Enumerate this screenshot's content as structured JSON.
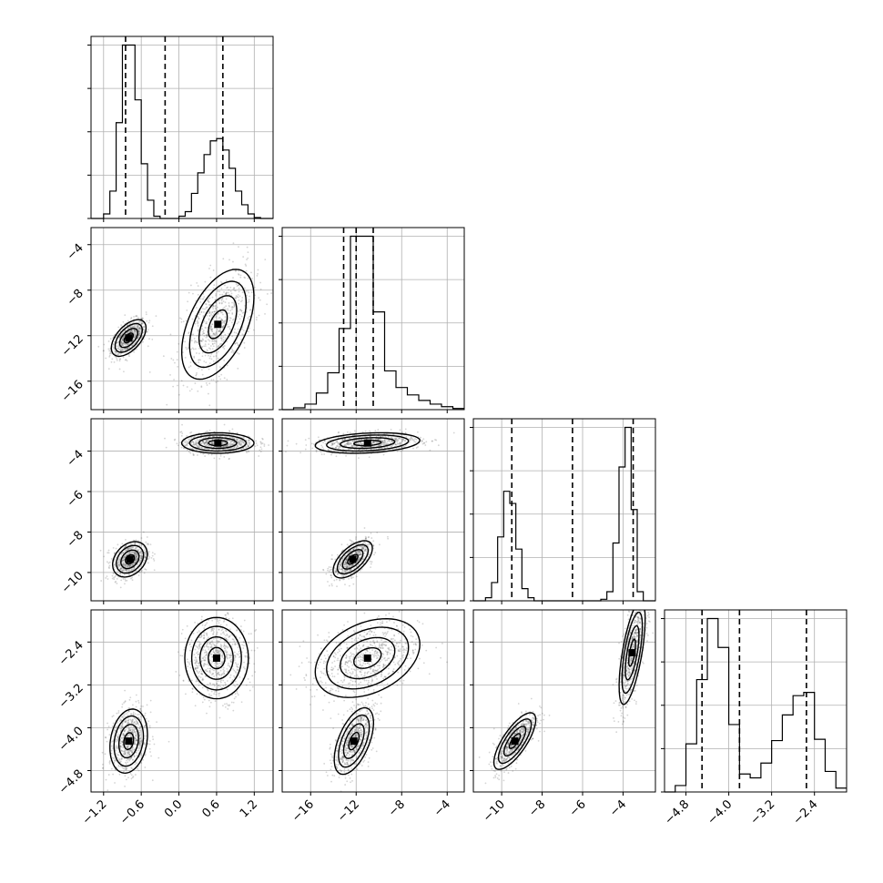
{
  "chart_data": {
    "type": "corner",
    "title": "",
    "grid": true,
    "parameters": [
      {
        "name": "",
        "range": [
          -1.4,
          1.5
        ],
        "ticks": [
          -1.2,
          -0.6,
          0.0,
          0.6,
          1.2
        ],
        "tick_labels": [
          "−1.2",
          "−0.6",
          "0.0",
          "0.6",
          "1.2"
        ],
        "quantiles": [
          -0.85,
          -0.22,
          0.7
        ]
      },
      {
        "name": "",
        "range": [
          -18.5,
          -2.5
        ],
        "ticks": [
          -16,
          -12,
          -8,
          -4
        ],
        "tick_labels": [
          "−16",
          "−12",
          "−8",
          "−4"
        ],
        "quantiles": [
          -13.1,
          -12.0,
          -10.5
        ]
      },
      {
        "name": "",
        "range": [
          -11.4,
          -2.4
        ],
        "ticks": [
          -10,
          -8,
          -6,
          -4
        ],
        "tick_labels": [
          "−10",
          "−8",
          "−6",
          "−4"
        ],
        "quantiles": [
          -9.5,
          -6.5,
          -3.5
        ]
      },
      {
        "name": "",
        "range": [
          -5.2,
          -1.8
        ],
        "ticks": [
          -4.8,
          -4.0,
          -3.2,
          -2.4
        ],
        "tick_labels": [
          "−4.8",
          "−4.0",
          "−3.2",
          "−2.4"
        ],
        "quantiles": [
          -4.5,
          -3.8,
          -2.55
        ]
      }
    ],
    "histograms": [
      {
        "param": 0,
        "bins": [
          -1.4,
          -1.3,
          -1.2,
          -1.1,
          -1.0,
          -0.9,
          -0.8,
          -0.7,
          -0.6,
          -0.5,
          -0.4,
          -0.3,
          -0.2,
          -0.1,
          0.0,
          0.1,
          0.2,
          0.3,
          0.4,
          0.5,
          0.6,
          0.7,
          0.8,
          0.9,
          1.0,
          1.1,
          1.2,
          1.3,
          1.4,
          1.5
        ],
        "counts": [
          0,
          0,
          10,
          60,
          210,
          380,
          380,
          260,
          120,
          40,
          5,
          0,
          0,
          0,
          5,
          15,
          55,
          100,
          140,
          170,
          175,
          150,
          110,
          60,
          30,
          10,
          2,
          0,
          0
        ]
      },
      {
        "param": 1,
        "bins": [
          -18.5,
          -17.5,
          -16.5,
          -15.5,
          -14.5,
          -13.5,
          -12.5,
          -11.5,
          -10.5,
          -9.5,
          -8.5,
          -7.5,
          -6.5,
          -5.5,
          -4.5,
          -3.5,
          -2.5
        ],
        "counts": [
          0,
          5,
          15,
          45,
          100,
          220,
          470,
          470,
          265,
          105,
          60,
          40,
          25,
          15,
          8,
          3
        ]
      },
      {
        "param": 2,
        "bins": [
          -11.4,
          -11.1,
          -10.8,
          -10.5,
          -10.2,
          -9.9,
          -9.6,
          -9.3,
          -9.0,
          -8.7,
          -8.4,
          -8.1,
          -7.8,
          -7.5,
          -7.2,
          -6.9,
          -6.6,
          -6.3,
          -6.0,
          -5.7,
          -5.4,
          -5.1,
          -4.8,
          -4.5,
          -4.2,
          -3.9,
          -3.6,
          -3.3,
          -3.0,
          -2.7,
          -2.4
        ],
        "counts": [
          0,
          0,
          10,
          60,
          210,
          360,
          320,
          170,
          40,
          10,
          0,
          0,
          0,
          0,
          0,
          0,
          0,
          0,
          0,
          0,
          0,
          5,
          30,
          190,
          440,
          570,
          300,
          30,
          0,
          0
        ]
      },
      {
        "param": 3,
        "bins": [
          -5.2,
          -5.0,
          -4.8,
          -4.6,
          -4.4,
          -4.2,
          -4.0,
          -3.8,
          -3.6,
          -3.4,
          -3.2,
          -3.0,
          -2.8,
          -2.6,
          -2.4,
          -2.2,
          -2.0,
          -1.8
        ],
        "counts": [
          0,
          10,
          75,
          175,
          270,
          225,
          105,
          28,
          22,
          45,
          80,
          120,
          150,
          155,
          82,
          32,
          6
        ]
      }
    ],
    "pairs": [
      {
        "x_param": 0,
        "y_param": 1,
        "modes": [
          {
            "cx": -0.8,
            "cy": -12.2,
            "sx": 0.12,
            "sy": 0.7,
            "rho": 0.55,
            "weight": 0.5
          },
          {
            "cx": 0.62,
            "cy": -11.0,
            "sx": 0.25,
            "sy": 2.1,
            "rho": 0.5,
            "weight": 0.5
          }
        ]
      },
      {
        "x_param": 0,
        "y_param": 2,
        "modes": [
          {
            "cx": -0.78,
            "cy": -9.35,
            "sx": 0.12,
            "sy": 0.38,
            "rho": 0.3,
            "weight": 0.5
          },
          {
            "cx": 0.62,
            "cy": -3.6,
            "sx": 0.25,
            "sy": 0.22,
            "rho": 0.0,
            "weight": 0.5
          }
        ]
      },
      {
        "x_param": 0,
        "y_param": 3,
        "modes": [
          {
            "cx": -0.8,
            "cy": -4.25,
            "sx": 0.13,
            "sy": 0.26,
            "rho": 0.2,
            "weight": 0.5
          },
          {
            "cx": 0.6,
            "cy": -2.7,
            "sx": 0.22,
            "sy": 0.33,
            "rho": 0.0,
            "weight": 0.5
          }
        ]
      },
      {
        "x_param": 1,
        "y_param": 2,
        "modes": [
          {
            "cx": -12.3,
            "cy": -9.35,
            "sx": 0.75,
            "sy": 0.4,
            "rho": 0.6,
            "weight": 0.5
          },
          {
            "cx": -11.0,
            "cy": -3.6,
            "sx": 2.0,
            "sy": 0.22,
            "rho": 0.25,
            "weight": 0.5
          }
        ]
      },
      {
        "x_param": 1,
        "y_param": 3,
        "modes": [
          {
            "cx": -12.2,
            "cy": -4.25,
            "sx": 0.75,
            "sy": 0.27,
            "rho": 0.55,
            "weight": 0.5
          },
          {
            "cx": -11.0,
            "cy": -2.7,
            "sx": 2.0,
            "sy": 0.32,
            "rho": 0.35,
            "weight": 0.5
          }
        ]
      },
      {
        "x_param": 2,
        "y_param": 3,
        "modes": [
          {
            "cx": -9.35,
            "cy": -4.25,
            "sx": 0.45,
            "sy": 0.23,
            "rho": 0.75,
            "weight": 0.5
          },
          {
            "cx": -3.55,
            "cy": -2.6,
            "sx": 0.28,
            "sy": 0.42,
            "rho": 0.65,
            "weight": 0.5
          }
        ]
      }
    ]
  }
}
